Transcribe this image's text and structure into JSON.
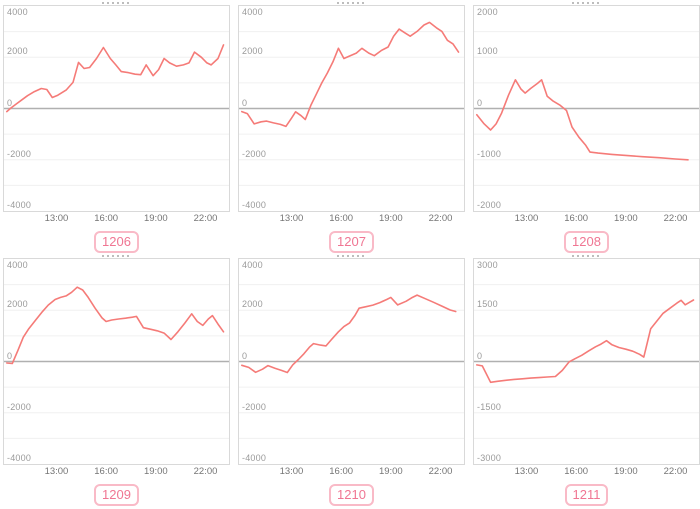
{
  "page": {
    "background": "#ffffff"
  },
  "style": {
    "line_color": "#f57b78",
    "zero_line_color": "#b0b0b0",
    "grid_color": "#f0f0f0",
    "panel_border_color": "#d9d9d9",
    "y_label_color": "#9a9a9a",
    "x_label_color": "#757575",
    "badge_border_color": "#f9bac7",
    "badge_text_color": "#f07693"
  },
  "chart_data": [
    {
      "type": "line",
      "badge_label": "1206",
      "title": "",
      "xlabel": "",
      "ylabel": "",
      "ylim": [
        -4000,
        4000
      ],
      "y_ticks": [
        4000,
        2000,
        0,
        -2000,
        -4000
      ],
      "x_ticks": [
        "13:00",
        "16:00",
        "19:00",
        "22:00"
      ],
      "x_range": [
        "09:50",
        "23:25"
      ],
      "grid": "on",
      "legend": "none",
      "points": [
        [
          "10:00",
          -120
        ],
        [
          "10:15",
          20
        ],
        [
          "10:35",
          180
        ],
        [
          "10:55",
          340
        ],
        [
          "11:15",
          500
        ],
        [
          "11:40",
          660
        ],
        [
          "12:05",
          780
        ],
        [
          "12:25",
          740
        ],
        [
          "12:45",
          430
        ],
        [
          "13:05",
          520
        ],
        [
          "13:35",
          720
        ],
        [
          "14:00",
          1020
        ],
        [
          "14:20",
          1800
        ],
        [
          "14:40",
          1560
        ],
        [
          "15:00",
          1600
        ],
        [
          "15:25",
          1950
        ],
        [
          "15:50",
          2380
        ],
        [
          "16:15",
          1950
        ],
        [
          "16:35",
          1700
        ],
        [
          "16:55",
          1440
        ],
        [
          "17:20",
          1400
        ],
        [
          "17:45",
          1340
        ],
        [
          "18:05",
          1320
        ],
        [
          "18:25",
          1700
        ],
        [
          "18:50",
          1280
        ],
        [
          "19:10",
          1520
        ],
        [
          "19:30",
          1950
        ],
        [
          "19:50",
          1780
        ],
        [
          "20:15",
          1650
        ],
        [
          "20:40",
          1700
        ],
        [
          "21:00",
          1780
        ],
        [
          "21:20",
          2200
        ],
        [
          "21:45",
          2000
        ],
        [
          "22:05",
          1780
        ],
        [
          "22:20",
          1700
        ],
        [
          "22:45",
          1950
        ],
        [
          "23:05",
          2480
        ]
      ]
    },
    {
      "type": "line",
      "badge_label": "1207",
      "title": "",
      "xlabel": "",
      "ylabel": "",
      "ylim": [
        -4000,
        4000
      ],
      "y_ticks": [
        4000,
        2000,
        0,
        -2000,
        -4000
      ],
      "x_ticks": [
        "13:00",
        "16:00",
        "19:00",
        "22:00"
      ],
      "x_range": [
        "09:50",
        "23:25"
      ],
      "grid": "on",
      "legend": "none",
      "points": [
        [
          "10:00",
          -120
        ],
        [
          "10:20",
          -200
        ],
        [
          "10:45",
          -600
        ],
        [
          "11:10",
          -520
        ],
        [
          "11:30",
          -490
        ],
        [
          "11:55",
          -560
        ],
        [
          "12:20",
          -620
        ],
        [
          "12:40",
          -700
        ],
        [
          "13:00",
          -380
        ],
        [
          "13:15",
          -130
        ],
        [
          "13:35",
          -280
        ],
        [
          "13:50",
          -430
        ],
        [
          "14:10",
          120
        ],
        [
          "14:30",
          560
        ],
        [
          "14:50",
          1000
        ],
        [
          "15:10",
          1380
        ],
        [
          "15:30",
          1820
        ],
        [
          "15:50",
          2350
        ],
        [
          "16:10",
          1950
        ],
        [
          "16:35",
          2070
        ],
        [
          "16:55",
          2160
        ],
        [
          "17:15",
          2350
        ],
        [
          "17:40",
          2160
        ],
        [
          "18:00",
          2060
        ],
        [
          "18:25",
          2260
        ],
        [
          "18:50",
          2400
        ],
        [
          "19:10",
          2820
        ],
        [
          "19:30",
          3100
        ],
        [
          "19:50",
          2960
        ],
        [
          "20:10",
          2820
        ],
        [
          "20:35",
          3010
        ],
        [
          "21:00",
          3260
        ],
        [
          "21:20",
          3360
        ],
        [
          "21:45",
          3150
        ],
        [
          "22:05",
          3010
        ],
        [
          "22:25",
          2660
        ],
        [
          "22:45",
          2520
        ],
        [
          "23:05",
          2200
        ]
      ]
    },
    {
      "type": "line",
      "badge_label": "1208",
      "title": "",
      "xlabel": "",
      "ylabel": "",
      "ylim": [
        -2000,
        2000
      ],
      "y_ticks": [
        2000,
        1000,
        0,
        -1000,
        -2000
      ],
      "x_ticks": [
        "13:00",
        "16:00",
        "19:00",
        "22:00"
      ],
      "x_range": [
        "09:50",
        "23:25"
      ],
      "grid": "on",
      "legend": "none",
      "points": [
        [
          "10:00",
          -120
        ],
        [
          "10:25",
          -290
        ],
        [
          "10:50",
          -420
        ],
        [
          "11:10",
          -300
        ],
        [
          "11:30",
          -90
        ],
        [
          "11:55",
          260
        ],
        [
          "12:20",
          560
        ],
        [
          "12:40",
          380
        ],
        [
          "12:55",
          300
        ],
        [
          "13:15",
          390
        ],
        [
          "13:40",
          490
        ],
        [
          "13:55",
          560
        ],
        [
          "14:15",
          240
        ],
        [
          "14:35",
          150
        ],
        [
          "15:00",
          70
        ],
        [
          "15:25",
          -40
        ],
        [
          "15:45",
          -360
        ],
        [
          "16:10",
          -560
        ],
        [
          "16:35",
          -720
        ],
        [
          "16:50",
          -850
        ],
        [
          "17:20",
          -870
        ],
        [
          "18:10",
          -895
        ],
        [
          "19:00",
          -915
        ],
        [
          "20:00",
          -940
        ],
        [
          "21:00",
          -960
        ],
        [
          "22:00",
          -985
        ],
        [
          "22:45",
          -1000
        ]
      ]
    },
    {
      "type": "line",
      "badge_label": "1209",
      "title": "",
      "xlabel": "",
      "ylabel": "",
      "ylim": [
        -4000,
        4000
      ],
      "y_ticks": [
        4000,
        2000,
        0,
        -2000,
        -4000
      ],
      "x_ticks": [
        "13:00",
        "16:00",
        "19:00",
        "22:00"
      ],
      "x_range": [
        "09:50",
        "23:25"
      ],
      "grid": "on",
      "legend": "none",
      "points": [
        [
          "10:00",
          -60
        ],
        [
          "10:20",
          -80
        ],
        [
          "10:40",
          420
        ],
        [
          "11:00",
          950
        ],
        [
          "11:20",
          1280
        ],
        [
          "11:45",
          1620
        ],
        [
          "12:10",
          1960
        ],
        [
          "12:30",
          2200
        ],
        [
          "12:55",
          2420
        ],
        [
          "13:15",
          2500
        ],
        [
          "13:35",
          2560
        ],
        [
          "13:55",
          2700
        ],
        [
          "14:15",
          2900
        ],
        [
          "14:35",
          2790
        ],
        [
          "14:55",
          2500
        ],
        [
          "15:20",
          2080
        ],
        [
          "15:45",
          1700
        ],
        [
          "16:00",
          1560
        ],
        [
          "16:20",
          1620
        ],
        [
          "16:45",
          1660
        ],
        [
          "17:10",
          1690
        ],
        [
          "17:35",
          1730
        ],
        [
          "17:50",
          1760
        ],
        [
          "18:15",
          1320
        ],
        [
          "18:40",
          1260
        ],
        [
          "19:05",
          1200
        ],
        [
          "19:30",
          1110
        ],
        [
          "19:55",
          860
        ],
        [
          "20:20",
          1160
        ],
        [
          "20:45",
          1500
        ],
        [
          "21:10",
          1860
        ],
        [
          "21:30",
          1560
        ],
        [
          "21:50",
          1410
        ],
        [
          "22:10",
          1660
        ],
        [
          "22:25",
          1790
        ],
        [
          "22:45",
          1460
        ],
        [
          "23:05",
          1160
        ]
      ]
    },
    {
      "type": "line",
      "badge_label": "1210",
      "title": "",
      "xlabel": "",
      "ylabel": "",
      "ylim": [
        -4000,
        4000
      ],
      "y_ticks": [
        4000,
        2000,
        0,
        -2000,
        -4000
      ],
      "x_ticks": [
        "13:00",
        "16:00",
        "19:00",
        "22:00"
      ],
      "x_range": [
        "09:50",
        "23:25"
      ],
      "grid": "on",
      "legend": "none",
      "points": [
        [
          "10:00",
          -150
        ],
        [
          "10:25",
          -230
        ],
        [
          "10:50",
          -420
        ],
        [
          "11:15",
          -300
        ],
        [
          "11:35",
          -160
        ],
        [
          "12:00",
          -260
        ],
        [
          "12:25",
          -350
        ],
        [
          "12:45",
          -430
        ],
        [
          "13:05",
          -130
        ],
        [
          "13:25",
          80
        ],
        [
          "13:45",
          300
        ],
        [
          "14:05",
          560
        ],
        [
          "14:20",
          700
        ],
        [
          "14:45",
          640
        ],
        [
          "15:05",
          610
        ],
        [
          "15:25",
          860
        ],
        [
          "15:50",
          1160
        ],
        [
          "16:10",
          1360
        ],
        [
          "16:30",
          1500
        ],
        [
          "16:50",
          1800
        ],
        [
          "17:05",
          2080
        ],
        [
          "17:30",
          2140
        ],
        [
          "17:55",
          2200
        ],
        [
          "18:20",
          2300
        ],
        [
          "18:45",
          2420
        ],
        [
          "19:00",
          2500
        ],
        [
          "19:25",
          2210
        ],
        [
          "19:55",
          2350
        ],
        [
          "20:15",
          2480
        ],
        [
          "20:35",
          2590
        ],
        [
          "21:05",
          2450
        ],
        [
          "21:35",
          2310
        ],
        [
          "22:05",
          2160
        ],
        [
          "22:35",
          2010
        ],
        [
          "22:55",
          1950
        ]
      ]
    },
    {
      "type": "line",
      "badge_label": "1211",
      "title": "",
      "xlabel": "",
      "ylabel": "",
      "ylim": [
        -3000,
        3000
      ],
      "y_ticks": [
        3000,
        1500,
        0,
        -1500,
        -3000
      ],
      "x_ticks": [
        "13:00",
        "16:00",
        "19:00",
        "22:00"
      ],
      "x_range": [
        "09:50",
        "23:25"
      ],
      "grid": "on",
      "legend": "none",
      "points": [
        [
          "10:00",
          -100
        ],
        [
          "10:20",
          -130
        ],
        [
          "10:50",
          -610
        ],
        [
          "11:15",
          -580
        ],
        [
          "11:45",
          -550
        ],
        [
          "12:15",
          -525
        ],
        [
          "12:45",
          -505
        ],
        [
          "13:15",
          -485
        ],
        [
          "13:45",
          -470
        ],
        [
          "14:15",
          -455
        ],
        [
          "14:45",
          -440
        ],
        [
          "15:10",
          -260
        ],
        [
          "15:35",
          -10
        ],
        [
          "15:55",
          80
        ],
        [
          "16:20",
          180
        ],
        [
          "16:45",
          310
        ],
        [
          "17:10",
          430
        ],
        [
          "17:30",
          510
        ],
        [
          "17:50",
          610
        ],
        [
          "18:10",
          490
        ],
        [
          "18:35",
          410
        ],
        [
          "19:00",
          360
        ],
        [
          "19:25",
          300
        ],
        [
          "19:50",
          210
        ],
        [
          "20:05",
          130
        ],
        [
          "20:30",
          960
        ],
        [
          "20:50",
          1160
        ],
        [
          "21:15",
          1410
        ],
        [
          "21:40",
          1560
        ],
        [
          "22:05",
          1710
        ],
        [
          "22:20",
          1790
        ],
        [
          "22:35",
          1660
        ],
        [
          "22:50",
          1730
        ],
        [
          "23:05",
          1800
        ]
      ]
    }
  ]
}
